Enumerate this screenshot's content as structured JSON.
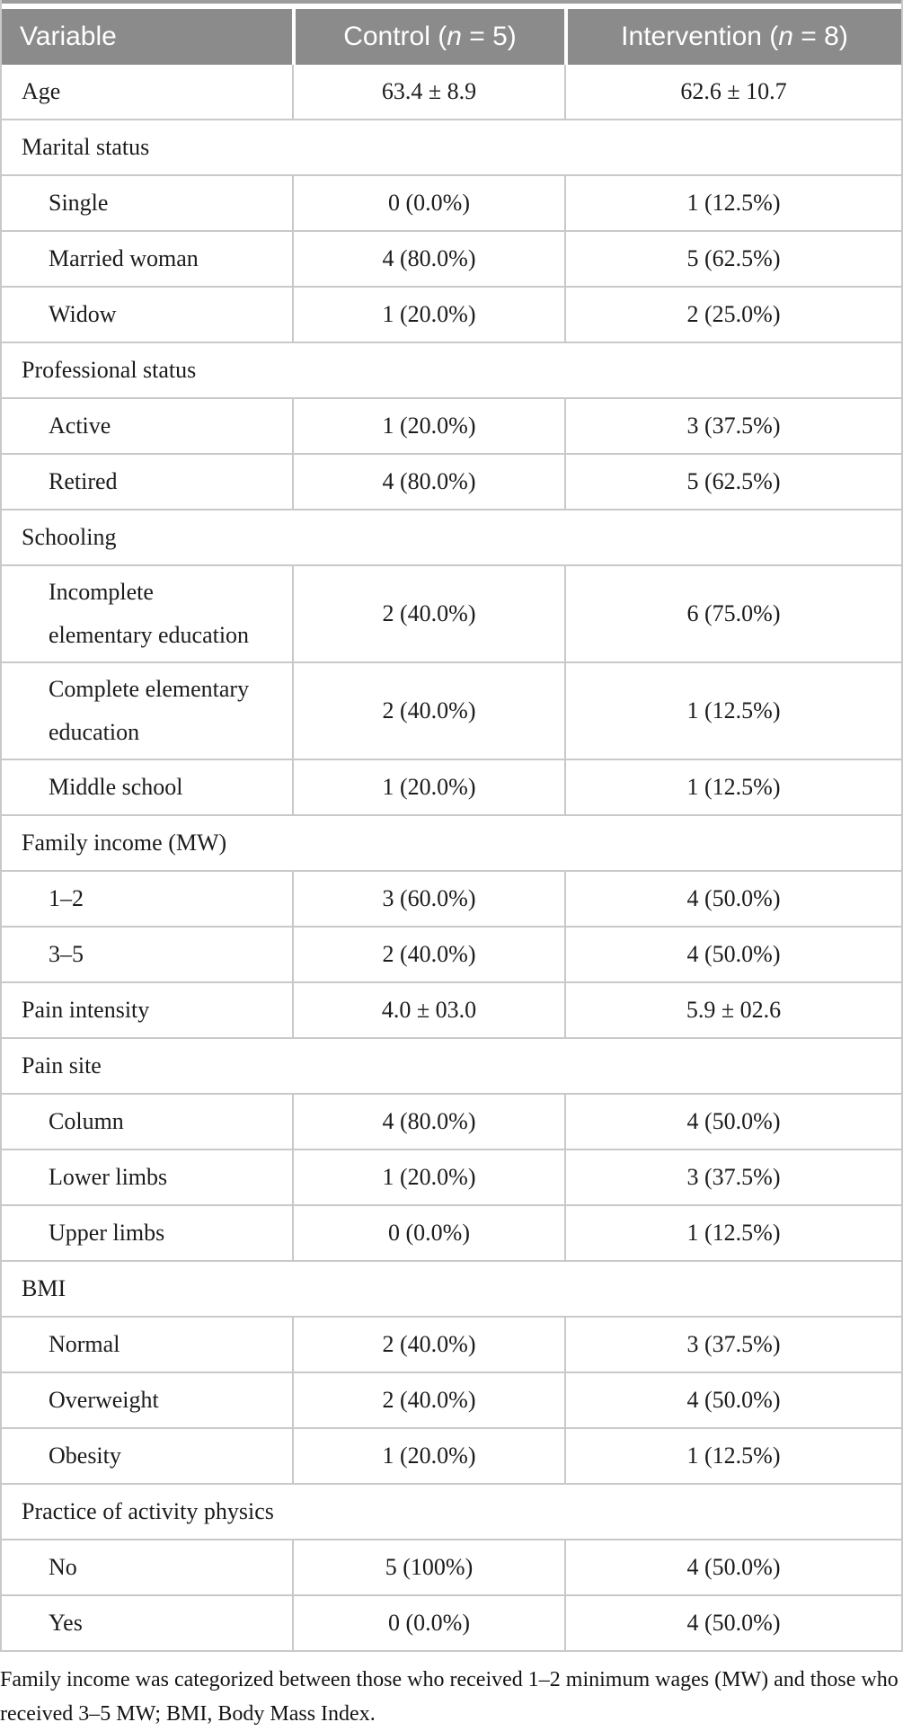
{
  "table": {
    "header": [
      {
        "text": "Variable"
      },
      {
        "prefix": "Control (",
        "n": "n",
        "suffix": " = 5)"
      },
      {
        "prefix": "Intervention (",
        "n": "n",
        "suffix": " = 8)"
      }
    ],
    "rows": [
      {
        "type": "data",
        "indent": false,
        "lines": [
          "Age"
        ],
        "control": "63.4 ± 8.9",
        "intervention": "62.6 ± 10.7"
      },
      {
        "type": "category",
        "indent": false,
        "lines": [
          "Marital status"
        ]
      },
      {
        "type": "data",
        "indent": true,
        "lines": [
          "Single"
        ],
        "control": "0 (0.0%)",
        "intervention": "1 (12.5%)"
      },
      {
        "type": "data",
        "indent": true,
        "lines": [
          "Married woman"
        ],
        "control": "4 (80.0%)",
        "intervention": "5 (62.5%)"
      },
      {
        "type": "data",
        "indent": true,
        "lines": [
          "Widow"
        ],
        "control": "1 (20.0%)",
        "intervention": "2 (25.0%)"
      },
      {
        "type": "category",
        "indent": false,
        "lines": [
          "Professional status"
        ]
      },
      {
        "type": "data",
        "indent": true,
        "lines": [
          "Active"
        ],
        "control": "1 (20.0%)",
        "intervention": "3 (37.5%)"
      },
      {
        "type": "data",
        "indent": true,
        "lines": [
          "Retired"
        ],
        "control": "4 (80.0%)",
        "intervention": "5 (62.5%)"
      },
      {
        "type": "category",
        "indent": false,
        "lines": [
          "Schooling"
        ]
      },
      {
        "type": "data",
        "indent": true,
        "lines": [
          "Incomplete",
          "elementary education"
        ],
        "control": "2 (40.0%)",
        "intervention": "6 (75.0%)"
      },
      {
        "type": "data",
        "indent": true,
        "lines": [
          "Complete elementary",
          "education"
        ],
        "control": "2 (40.0%)",
        "intervention": "1 (12.5%)"
      },
      {
        "type": "data",
        "indent": true,
        "lines": [
          "Middle school"
        ],
        "control": "1 (20.0%)",
        "intervention": "1 (12.5%)"
      },
      {
        "type": "category",
        "indent": false,
        "lines": [
          "Family income (MW)"
        ]
      },
      {
        "type": "data",
        "indent": true,
        "lines": [
          "1–2"
        ],
        "control": "3 (60.0%)",
        "intervention": "4 (50.0%)"
      },
      {
        "type": "data",
        "indent": true,
        "lines": [
          "3–5"
        ],
        "control": "2 (40.0%)",
        "intervention": "4 (50.0%)"
      },
      {
        "type": "data",
        "indent": false,
        "lines": [
          "Pain intensity"
        ],
        "control": "4.0 ± 03.0",
        "intervention": "5.9 ± 02.6"
      },
      {
        "type": "category",
        "indent": false,
        "lines": [
          "Pain site"
        ]
      },
      {
        "type": "data",
        "indent": true,
        "lines": [
          "Column"
        ],
        "control": "4 (80.0%)",
        "intervention": "4 (50.0%)"
      },
      {
        "type": "data",
        "indent": true,
        "lines": [
          "Lower limbs"
        ],
        "control": "1 (20.0%)",
        "intervention": "3 (37.5%)"
      },
      {
        "type": "data",
        "indent": true,
        "lines": [
          "Upper limbs"
        ],
        "control": "0 (0.0%)",
        "intervention": "1 (12.5%)"
      },
      {
        "type": "category",
        "indent": false,
        "lines": [
          "BMI"
        ]
      },
      {
        "type": "data",
        "indent": true,
        "lines": [
          "Normal"
        ],
        "control": "2 (40.0%)",
        "intervention": "3 (37.5%)"
      },
      {
        "type": "data",
        "indent": true,
        "lines": [
          "Overweight"
        ],
        "control": "2 (40.0%)",
        "intervention": "4 (50.0%)"
      },
      {
        "type": "data",
        "indent": true,
        "lines": [
          "Obesity"
        ],
        "control": "1 (20.0%)",
        "intervention": "1 (12.5%)"
      },
      {
        "type": "category",
        "indent": false,
        "lines": [
          "Practice of activity physics"
        ]
      },
      {
        "type": "data",
        "indent": true,
        "lines": [
          "No"
        ],
        "control": "5 (100%)",
        "intervention": "4 (50.0%)"
      },
      {
        "type": "data",
        "indent": true,
        "lines": [
          "Yes"
        ],
        "control": "0 (0.0%)",
        "intervention": "4 (50.0%)"
      }
    ],
    "footnote": "Family income was categorized between those who received 1–2 minimum wages (MW) and those who received 3–5 MW; BMI, Body Mass Index."
  },
  "colors": {
    "header_background": "#8b8b8b",
    "header_text": "#ffffff",
    "body_text": "#1c1c1c",
    "grid_line": "#c9c9c9",
    "top_rule": "#9c9c9c"
  }
}
